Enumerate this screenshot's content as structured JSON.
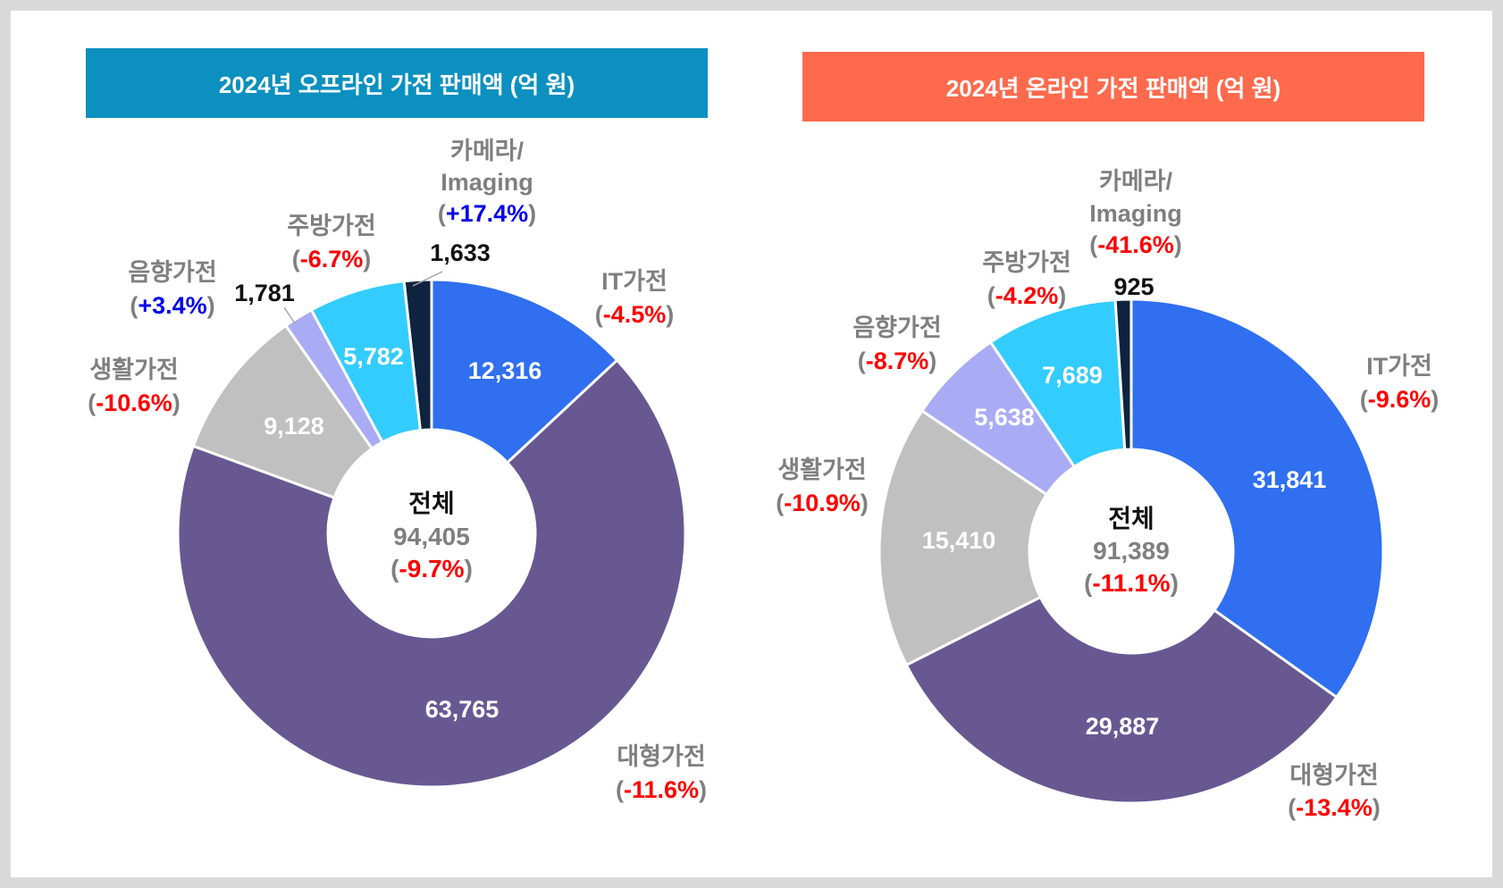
{
  "chart_data": [
    {
      "type": "pie",
      "title": "2024년 오프라인 가전 판매액 (억 원)",
      "center": {
        "label": "전체",
        "value": "94,405",
        "change": "-9.7%"
      },
      "slices": [
        {
          "name": "IT가전",
          "value": 12316,
          "value_label": "12,316",
          "change": "-4.5%",
          "color": "#2f6ff0"
        },
        {
          "name": "대형가전",
          "value": 63765,
          "value_label": "63,765",
          "change": "-11.6%",
          "color": "#675892"
        },
        {
          "name": "생활가전",
          "value": 9128,
          "value_label": "9,128",
          "change": "-10.6%",
          "color": "#c0c0c0"
        },
        {
          "name": "음향가전",
          "value": 1781,
          "value_label": "1,781",
          "change": "+3.4%",
          "color": "#a9acf5"
        },
        {
          "name": "주방가전",
          "value": 5782,
          "value_label": "5,782",
          "change": "-6.7%",
          "color": "#33ccff"
        },
        {
          "name": "카메라/ Imaging",
          "value": 1633,
          "value_label": "1,633",
          "change": "+17.4%",
          "color": "#0f2340"
        }
      ]
    },
    {
      "type": "pie",
      "title": "2024년 온라인 가전 판매액 (억 원)",
      "center": {
        "label": "전체",
        "value": "91,389",
        "change": "-11.1%"
      },
      "slices": [
        {
          "name": "IT가전",
          "value": 31841,
          "value_label": "31,841",
          "change": "-9.6%",
          "color": "#2f6ff0"
        },
        {
          "name": "대형가전",
          "value": 29887,
          "value_label": "29,887",
          "change": "-13.4%",
          "color": "#675892"
        },
        {
          "name": "생활가전",
          "value": 15410,
          "value_label": "15,410",
          "change": "-10.9%",
          "color": "#c0c0c0"
        },
        {
          "name": "음향가전",
          "value": 5638,
          "value_label": "5,638",
          "change": "-8.7%",
          "color": "#a9acf5"
        },
        {
          "name": "주방가전",
          "value": 7689,
          "value_label": "7,689",
          "change": "-4.2%",
          "color": "#33ccff"
        },
        {
          "name": "카메라/ Imaging",
          "value": 925,
          "value_label": "925",
          "change": "-41.6%",
          "color": "#0f2340"
        }
      ]
    }
  ],
  "colors": {
    "negative": "#ff0000",
    "positive": "#0000ee",
    "category_label": "#7f7f7f",
    "center_value": "#7f7f7f",
    "outside_value": "#111111",
    "inside_value": "#ffffff"
  }
}
